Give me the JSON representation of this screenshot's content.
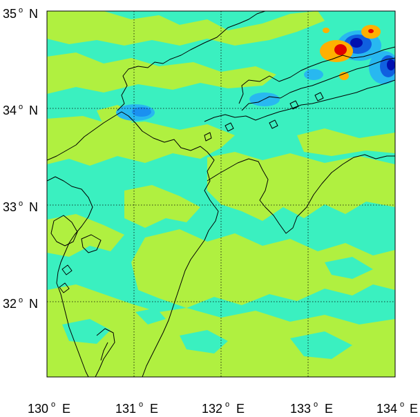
{
  "map": {
    "type": "contour map",
    "lat_range": [
      31.3,
      35.0
    ],
    "lon_range": [
      130.0,
      134.0
    ],
    "grid": true,
    "lat_ticks": [
      {
        "value": 35,
        "num": "35",
        "deg": "o",
        "hemi": "N"
      },
      {
        "value": 34,
        "num": "34",
        "deg": "o",
        "hemi": "N"
      },
      {
        "value": 33,
        "num": "33",
        "deg": "o",
        "hemi": "N"
      },
      {
        "value": 32,
        "num": "32",
        "deg": "o",
        "hemi": "N"
      }
    ],
    "lon_ticks": [
      {
        "value": 130,
        "num": "130",
        "deg": "o",
        "hemi": "E"
      },
      {
        "value": 131,
        "num": "131",
        "deg": "o",
        "hemi": "E"
      },
      {
        "value": 132,
        "num": "132",
        "deg": "o",
        "hemi": "E"
      },
      {
        "value": 133,
        "num": "133",
        "deg": "o",
        "hemi": "E"
      },
      {
        "value": 134,
        "num": "134",
        "deg": "o",
        "hemi": "E"
      }
    ],
    "colors": {
      "field_low": "#3af0c0",
      "field_mid": "#b0f040",
      "negative_light": "#28b8f0",
      "negative_mid": "#1060e0",
      "negative_strong": "#0010b0",
      "positive_light": "#ffb000",
      "positive_strong": "#e00000",
      "coastline": "#000000",
      "grid": "#000000"
    }
  }
}
